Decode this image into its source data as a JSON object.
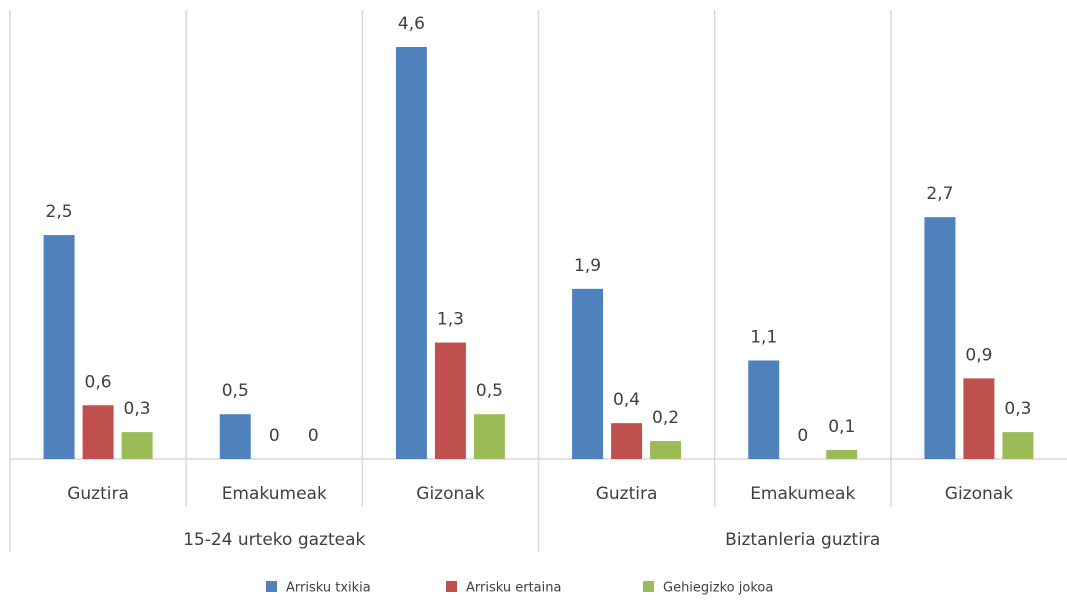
{
  "chart_data": {
    "type": "bar",
    "groups": [
      {
        "name": "15-24 urteko gazteak",
        "categories": [
          "Guztira",
          "Emakumeak",
          "Gizonak"
        ]
      },
      {
        "name": "Biztanleria guztira",
        "categories": [
          "Guztira",
          "Emakumeak",
          "Gizonak"
        ]
      }
    ],
    "series": [
      {
        "name": "Arrisku txikia",
        "color": "#4f81bd",
        "values": [
          2.5,
          0.5,
          4.6,
          1.9,
          1.1,
          2.7
        ],
        "value_labels": [
          "2,5",
          "0,5",
          "4,6",
          "1,9",
          "1,1",
          "2,7"
        ]
      },
      {
        "name": "Arrisku ertaina",
        "color": "#c0504d",
        "values": [
          0.6,
          0,
          1.3,
          0.4,
          0,
          0.9
        ],
        "value_labels": [
          "0,6",
          "0",
          "1,3",
          "0,4",
          "0",
          "0,9"
        ]
      },
      {
        "name": "Gehiegizko jokoa",
        "color": "#9bbb59",
        "values": [
          0.3,
          0,
          0.5,
          0.2,
          0.1,
          0.3
        ],
        "value_labels": [
          "0,3",
          "0",
          "0,5",
          "0,2",
          "0,1",
          "0,3"
        ]
      }
    ],
    "legend": "bottom"
  }
}
